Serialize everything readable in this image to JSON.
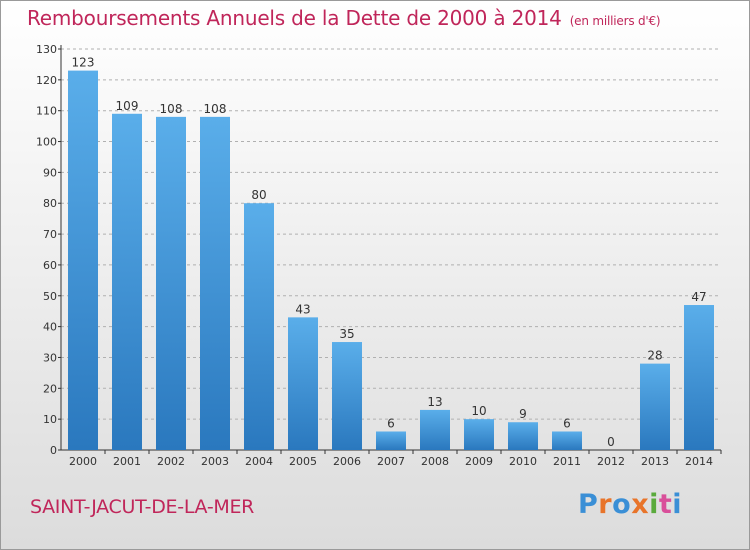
{
  "title": "Remboursements Annuels de la Dette de 2000 à 2014",
  "unit": "(en milliers d'€)",
  "commune": "SAINT-JACUT-DE-LA-MER",
  "logo": {
    "text": "Proxiti",
    "letters": [
      {
        "ch": "P",
        "color": "#3a8fd6"
      },
      {
        "ch": "r",
        "color": "#e8742a"
      },
      {
        "ch": "o",
        "color": "#3a8fd6"
      },
      {
        "ch": "x",
        "color": "#e8742a"
      },
      {
        "ch": "i",
        "color": "#5aaa3c"
      },
      {
        "ch": "t",
        "color": "#d94f9a"
      },
      {
        "ch": "i",
        "color": "#3a8fd6"
      }
    ]
  },
  "colors": {
    "bar_top": "#5aaeea",
    "bar_bottom": "#2a78be",
    "grid": "#b0b0b0"
  },
  "chart_data": {
    "type": "bar",
    "categories": [
      "2000",
      "2001",
      "2002",
      "2003",
      "2004",
      "2005",
      "2006",
      "2007",
      "2008",
      "2009",
      "2010",
      "2011",
      "2012",
      "2013",
      "2014"
    ],
    "values": [
      123,
      109,
      108,
      108,
      80,
      43,
      35,
      6,
      13,
      10,
      9,
      6,
      0,
      28,
      47
    ],
    "ylim": [
      0,
      130
    ],
    "yticks": [
      0,
      10,
      20,
      30,
      40,
      50,
      60,
      70,
      80,
      90,
      100,
      110,
      120,
      130
    ],
    "grid": true
  }
}
